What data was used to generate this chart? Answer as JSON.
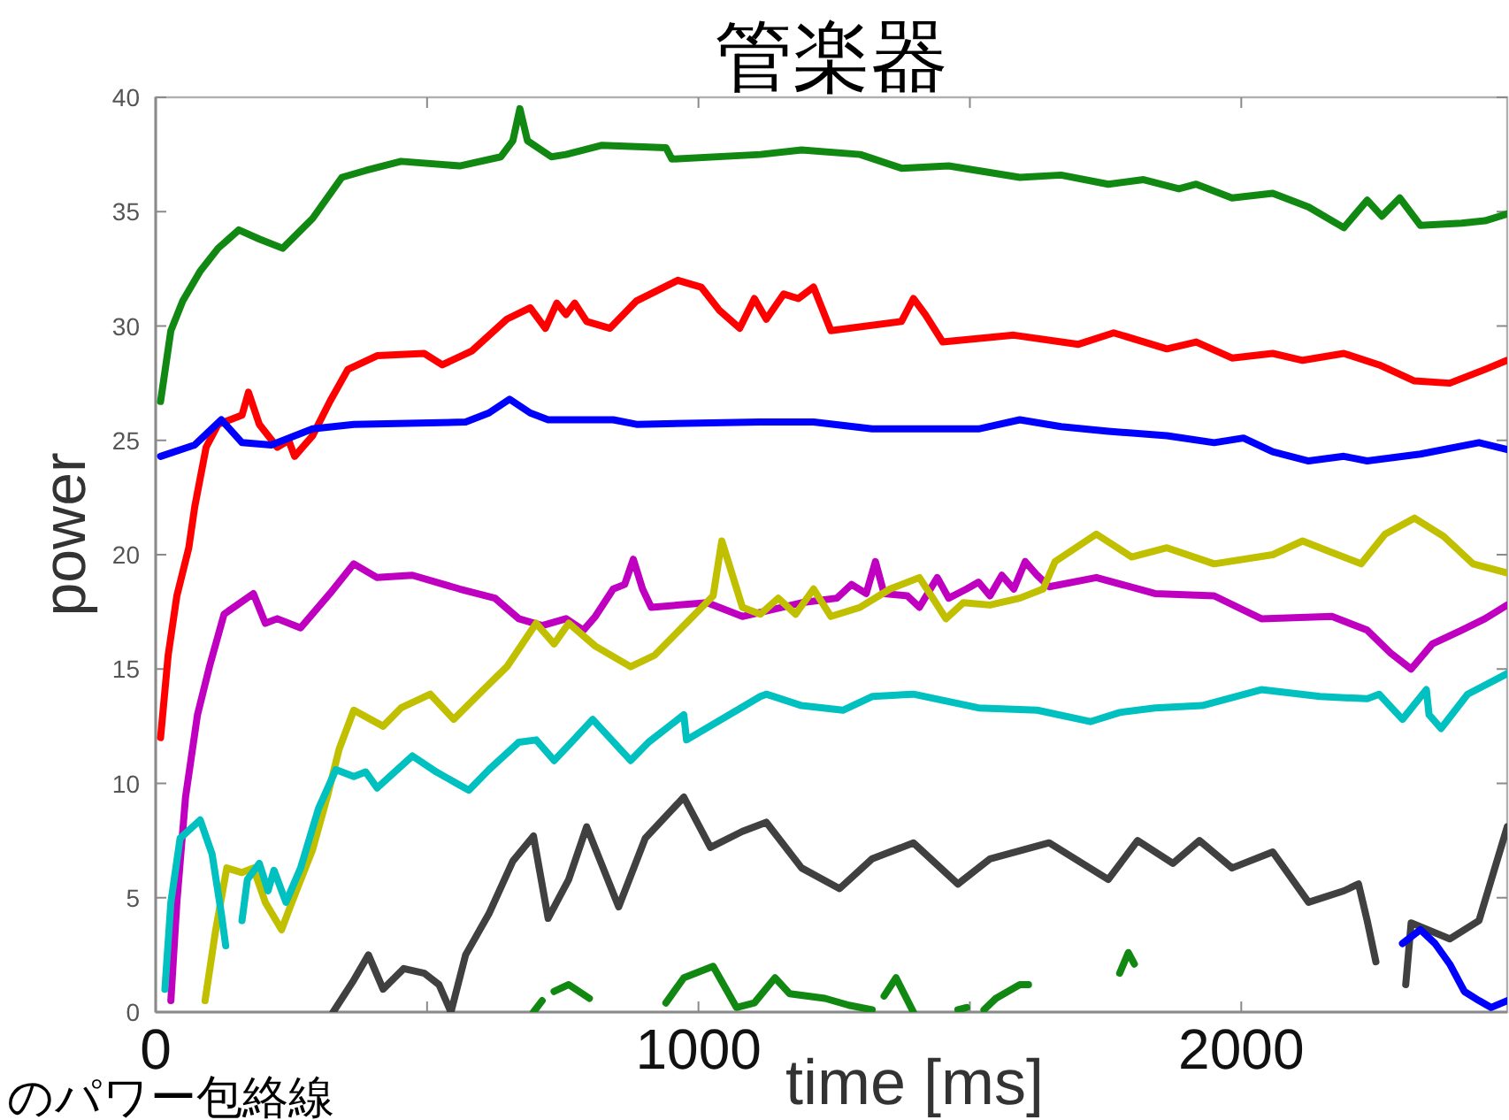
{
  "chart_data": {
    "type": "line",
    "title": "管楽器",
    "xlabel": "time [ms]",
    "ylabel": "power",
    "annotations": [
      "のパワー包絡線"
    ],
    "xlim": [
      0,
      2490
    ],
    "xticks": [
      0,
      {
        "value": 500,
        "label": null
      },
      1000,
      {
        "value": 1500,
        "label": null
      },
      2000
    ],
    "ylim": [
      0,
      40
    ],
    "yticks": [
      0,
      5,
      10,
      15,
      20,
      25,
      30,
      35,
      40
    ],
    "series": [
      {
        "color": "#118811",
        "x": [
          9,
          28,
          50,
          82,
          115,
          153,
          191,
          234,
          289,
          343,
          387,
          452,
          560,
          636,
          658,
          671,
          685,
          729,
          756,
          821,
          940,
          951,
          1114,
          1190,
          1298,
          1374,
          1461,
          1592,
          1668,
          1755,
          1820,
          1885,
          1917,
          1983,
          2058,
          2124,
          2189,
          2232,
          2259,
          2292,
          2330,
          2406,
          2449,
          2490
        ],
        "values": [
          26.7,
          29.8,
          31.1,
          32.4,
          33.4,
          34.2,
          33.8,
          33.4,
          34.7,
          36.5,
          36.8,
          37.2,
          37.0,
          37.4,
          38.1,
          39.5,
          38.1,
          37.4,
          37.5,
          37.9,
          37.8,
          37.3,
          37.5,
          37.7,
          37.5,
          36.9,
          37.0,
          36.5,
          36.6,
          36.2,
          36.4,
          36.0,
          36.2,
          35.6,
          35.8,
          35.2,
          34.3,
          35.5,
          34.8,
          35.6,
          34.4,
          34.5,
          34.6,
          34.9
        ]
      },
      {
        "color": "#ff0000",
        "x": [
          9,
          23,
          39,
          61,
          72,
          93,
          115,
          137,
          159,
          171,
          191,
          224,
          245,
          256,
          289,
          321,
          354,
          408,
          495,
          528,
          582,
          647,
          690,
          718,
          739,
          756,
          772,
          794,
          837,
          886,
          962,
          1005,
          1038,
          1076,
          1103,
          1125,
          1157,
          1184,
          1212,
          1244,
          1374,
          1396,
          1418,
          1450,
          1581,
          1700,
          1765,
          1863,
          1917,
          1983,
          2058,
          2113,
          2189,
          2254,
          2319,
          2384,
          2449,
          2490
        ],
        "values": [
          12.0,
          15.6,
          18.2,
          20.3,
          22.1,
          24.7,
          25.7,
          25.9,
          26.1,
          27.1,
          25.7,
          24.7,
          25.0,
          24.3,
          25.2,
          26.7,
          28.1,
          28.7,
          28.8,
          28.3,
          28.9,
          30.3,
          30.8,
          29.9,
          31.0,
          30.5,
          31.0,
          30.2,
          29.9,
          31.1,
          32.0,
          31.7,
          30.7,
          29.9,
          31.2,
          30.3,
          31.4,
          31.2,
          31.7,
          29.8,
          30.2,
          31.2,
          30.5,
          29.3,
          29.6,
          29.2,
          29.7,
          29.0,
          29.3,
          28.6,
          28.8,
          28.5,
          28.8,
          28.3,
          27.6,
          27.5,
          28.1,
          28.5
        ]
      },
      {
        "color": "#0000ff",
        "x": [
          9,
          72,
          121,
          159,
          213,
          289,
          365,
          571,
          614,
          652,
          690,
          723,
          843,
          886,
          1114,
          1212,
          1320,
          1516,
          1592,
          1668,
          1755,
          1863,
          1950,
          2004,
          2058,
          2124,
          2189,
          2232,
          2330,
          2438,
          2490
        ],
        "values": [
          24.3,
          24.8,
          25.9,
          24.9,
          24.8,
          25.5,
          25.7,
          25.8,
          26.2,
          26.8,
          26.2,
          25.9,
          25.9,
          25.7,
          25.8,
          25.8,
          25.5,
          25.5,
          25.9,
          25.6,
          25.4,
          25.2,
          24.9,
          25.1,
          24.5,
          24.1,
          24.3,
          24.1,
          24.4,
          24.9,
          24.6
        ]
      },
      {
        "color": "#c000c0",
        "x": [
          28,
          39,
          55,
          77,
          99,
          126,
          180,
          202,
          224,
          267,
          321,
          365,
          408,
          473,
          560,
          625,
          669,
          712,
          756,
          788,
          810,
          843,
          864,
          880,
          897,
          913,
          1016,
          1081,
          1190,
          1255,
          1282,
          1309,
          1326,
          1342,
          1385,
          1407,
          1440,
          1461,
          1494,
          1516,
          1537,
          1559,
          1581,
          1602,
          1624,
          1646,
          1733,
          1841,
          1950,
          2037,
          2167,
          2232,
          2275,
          2313,
          2352,
          2406,
          2449,
          2490
        ],
        "values": [
          0.5,
          4.8,
          9.4,
          13.0,
          15.1,
          17.4,
          18.3,
          17.0,
          17.2,
          16.8,
          18.3,
          19.6,
          19.0,
          19.1,
          18.5,
          18.1,
          17.2,
          16.9,
          17.2,
          16.7,
          17.3,
          18.5,
          18.7,
          19.8,
          18.5,
          17.7,
          17.9,
          17.3,
          17.9,
          18.1,
          18.7,
          18.3,
          19.7,
          18.3,
          18.2,
          17.7,
          19.0,
          18.1,
          18.5,
          18.8,
          18.2,
          19.1,
          18.5,
          19.7,
          19.1,
          18.6,
          19.0,
          18.3,
          18.2,
          17.2,
          17.3,
          16.7,
          15.7,
          15.0,
          16.1,
          16.7,
          17.2,
          17.8
        ]
      },
      {
        "color": "#c0c000",
        "x": [
          91,
          110,
          131,
          159,
          180,
          202,
          232,
          251,
          289,
          316,
          338,
          365,
          419,
          452,
          506,
          549,
          604,
          647,
          701,
          734,
          761,
          810,
          875,
          919,
          973,
          1027,
          1043,
          1081,
          1114,
          1147,
          1179,
          1212,
          1244,
          1298,
          1353,
          1407,
          1429,
          1456,
          1488,
          1537,
          1592,
          1635,
          1657,
          1733,
          1798,
          1863,
          1950,
          2058,
          2113,
          2167,
          2221,
          2265,
          2319,
          2373,
          2427,
          2490
        ],
        "values": [
          0.5,
          3.5,
          6.3,
          6.1,
          6.3,
          4.8,
          3.6,
          4.8,
          7.1,
          9.4,
          11.5,
          13.2,
          12.5,
          13.3,
          13.9,
          12.8,
          14.1,
          15.1,
          17.0,
          16.1,
          17.0,
          16.0,
          15.1,
          15.6,
          16.9,
          18.2,
          20.6,
          17.7,
          17.4,
          18.1,
          17.4,
          18.5,
          17.3,
          17.7,
          18.5,
          19.0,
          18.2,
          17.2,
          17.9,
          17.8,
          18.1,
          18.5,
          19.7,
          20.9,
          19.9,
          20.3,
          19.6,
          20.0,
          20.6,
          20.1,
          19.6,
          20.9,
          21.6,
          20.8,
          19.6,
          19.2
        ]
      },
      {
        "color": "#00c0c0",
        "x": [
          17,
          28,
          45,
          82,
          104,
          121,
          129
        ],
        "values": [
          1.0,
          4.8,
          7.6,
          8.4,
          6.9,
          4.3,
          2.9
        ]
      },
      {
        "color": "#00c0c0",
        "x": [
          159,
          169,
          191,
          207,
          218,
          240,
          267,
          300,
          332,
          365,
          387,
          408,
          473,
          517,
          577,
          614,
          669,
          701,
          734,
          766,
          805,
          875,
          908,
          973,
          978,
          1114,
          1125,
          1190,
          1266,
          1320,
          1396,
          1516,
          1624,
          1722,
          1776,
          1841,
          1928,
          2037,
          2145,
          2232,
          2254,
          2297,
          2341,
          2346,
          2368,
          2417,
          2490
        ],
        "values": [
          4.0,
          5.8,
          6.5,
          5.3,
          6.2,
          4.8,
          6.3,
          8.9,
          10.6,
          10.3,
          10.5,
          9.8,
          11.2,
          10.5,
          9.7,
          10.6,
          11.8,
          11.9,
          11.0,
          11.8,
          12.8,
          11.0,
          11.8,
          13.0,
          11.9,
          13.8,
          13.9,
          13.4,
          13.2,
          13.8,
          13.9,
          13.3,
          13.2,
          12.7,
          13.1,
          13.3,
          13.4,
          14.1,
          13.8,
          13.7,
          13.9,
          12.8,
          14.1,
          13.0,
          12.4,
          13.9,
          14.8
        ]
      },
      {
        "color": "#404040",
        "x": [
          327,
          365,
          392,
          419,
          457,
          495,
          522,
          544,
          571,
          614,
          658,
          696,
          723,
          761,
          794,
          853,
          902,
          973,
          1022,
          1081,
          1125,
          1190,
          1260,
          1320,
          1396,
          1478,
          1537,
          1646,
          1755,
          1809,
          1874,
          1923,
          1983,
          2058,
          2124,
          2189,
          2216,
          2232,
          2248
        ],
        "values": [
          0.0,
          1.4,
          2.5,
          1.0,
          1.9,
          1.7,
          1.2,
          0.0,
          2.5,
          4.3,
          6.6,
          7.7,
          4.1,
          5.8,
          8.1,
          4.6,
          7.6,
          9.4,
          7.2,
          7.9,
          8.3,
          6.3,
          5.4,
          6.7,
          7.4,
          5.6,
          6.7,
          7.4,
          5.8,
          7.5,
          6.5,
          7.5,
          6.3,
          7.0,
          4.8,
          5.3,
          5.6,
          4.0,
          2.2
        ]
      },
      {
        "color": "#404040",
        "x": [
          2303,
          2313,
          2384,
          2438,
          2471,
          2490
        ],
        "values": [
          1.2,
          3.9,
          3.2,
          4.0,
          6.6,
          8.1
        ]
      },
      {
        "color": "#118811",
        "x": [
          696,
          712
        ],
        "values": [
          0.0,
          0.5
        ]
      },
      {
        "color": "#118811",
        "x": [
          734,
          761,
          799
        ],
        "values": [
          0.9,
          1.2,
          0.6
        ]
      },
      {
        "color": "#118811",
        "x": [
          940,
          973,
          1027,
          1070,
          1103,
          1141,
          1168,
          1233,
          1277,
          1320
        ],
        "values": [
          0.4,
          1.5,
          2.0,
          0.2,
          0.4,
          1.5,
          0.8,
          0.6,
          0.3,
          0.1
        ]
      },
      {
        "color": "#118811",
        "x": [
          1342,
          1364,
          1396
        ],
        "values": [
          0.7,
          1.5,
          0.0
        ]
      },
      {
        "color": "#118811",
        "x": [
          1478,
          1494
        ],
        "values": [
          0.1,
          0.2
        ]
      },
      {
        "color": "#118811",
        "x": [
          1526,
          1548,
          1592,
          1608
        ],
        "values": [
          0.1,
          0.6,
          1.2,
          1.2
        ]
      },
      {
        "color": "#118811",
        "x": [
          1776,
          1792,
          1803
        ],
        "values": [
          1.7,
          2.6,
          2.1
        ]
      },
      {
        "color": "#0000ff",
        "x": [
          2297,
          2330,
          2357,
          2384,
          2411,
          2438,
          2460,
          2490
        ],
        "values": [
          3.0,
          3.6,
          3.0,
          2.1,
          0.9,
          0.5,
          0.2,
          0.5
        ]
      }
    ]
  }
}
